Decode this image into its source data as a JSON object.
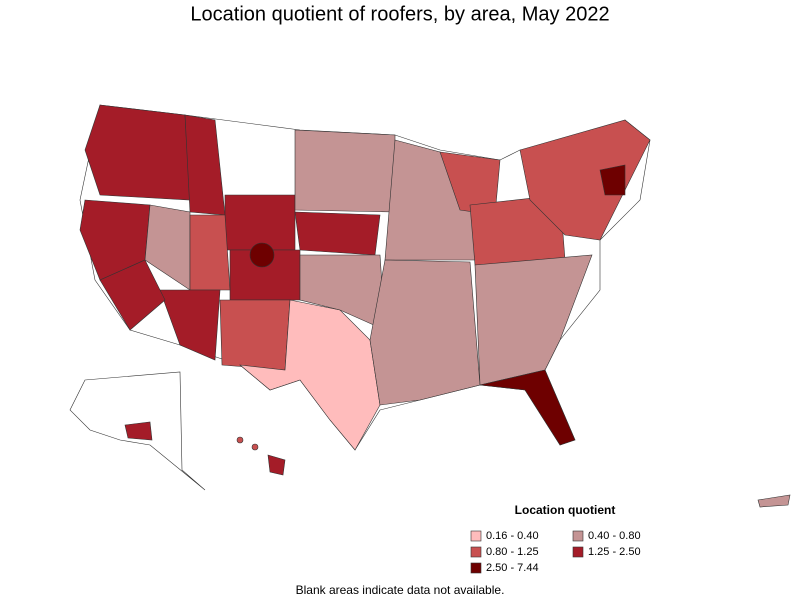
{
  "title": "Location quotient of roofers, by area, May 2022",
  "legend": {
    "title": "Location quotient",
    "items": [
      {
        "label": "0.16 - 0.40",
        "color": "#ffbcbc"
      },
      {
        "label": "0.40 - 0.80",
        "color": "#c49494"
      },
      {
        "label": "0.80 - 1.25",
        "color": "#c85050"
      },
      {
        "label": "1.25 - 2.50",
        "color": "#a41c28"
      },
      {
        "label": "2.50 - 7.44",
        "color": "#6e0000"
      }
    ]
  },
  "note": "Blank areas indicate data not available."
}
